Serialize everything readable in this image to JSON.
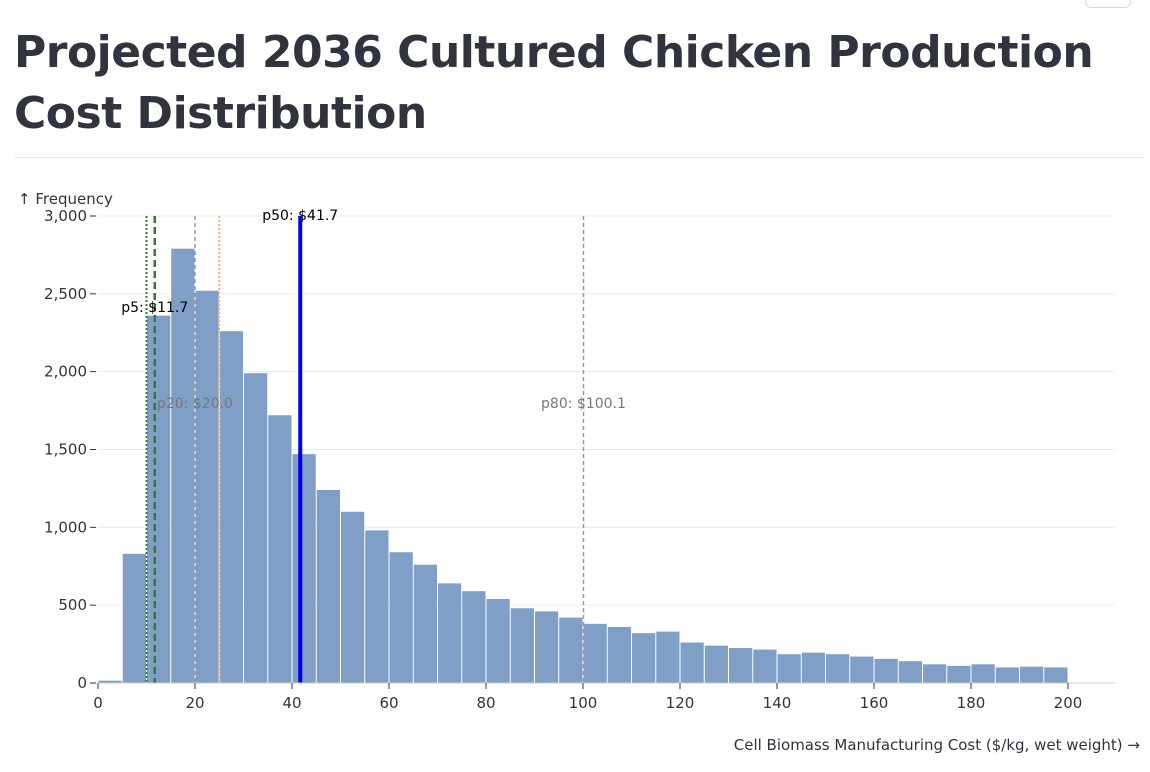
{
  "page": {
    "title": "Projected 2036 Cultured Chicken Production Cost Distribution"
  },
  "chart_data": {
    "type": "bar",
    "title": "Projected 2036 Cultured Chicken Production Cost Distribution",
    "xlabel": "Cell Biomass Manufacturing Cost ($/kg, wet weight) →",
    "ylabel": "↑ Frequency",
    "xlim": [
      0,
      210
    ],
    "ylim": [
      0,
      3000
    ],
    "grid": true,
    "bin_width": 5,
    "bins_start": [
      0,
      5,
      10,
      15,
      20,
      25,
      30,
      35,
      40,
      45,
      50,
      55,
      60,
      65,
      70,
      75,
      80,
      85,
      90,
      95,
      100,
      105,
      110,
      115,
      120,
      125,
      130,
      135,
      140,
      145,
      150,
      155,
      160,
      165,
      170,
      175,
      180,
      185,
      190,
      195
    ],
    "values": [
      15,
      830,
      2360,
      2790,
      2520,
      2260,
      1990,
      1720,
      1470,
      1240,
      1100,
      980,
      840,
      760,
      640,
      590,
      540,
      480,
      460,
      420,
      380,
      360,
      320,
      330,
      260,
      240,
      225,
      215,
      185,
      195,
      185,
      170,
      155,
      140,
      120,
      110,
      120,
      100,
      105,
      100
    ],
    "x_ticks": [
      "0",
      "20",
      "40",
      "60",
      "80",
      "100",
      "120",
      "140",
      "160",
      "180",
      "200"
    ],
    "x_tick_values": [
      0,
      20,
      40,
      60,
      80,
      100,
      120,
      140,
      160,
      180,
      200
    ],
    "y_ticks": [
      "0",
      "500",
      "1,000",
      "1,500",
      "2,000",
      "2,500",
      "3,000"
    ],
    "y_tick_values": [
      0,
      500,
      1000,
      1500,
      2000,
      2500,
      3000
    ],
    "colors": {
      "bar": "#7f9fc6",
      "grid": "#ebebeb",
      "axis": "#31333f"
    },
    "reference_lines": [
      {
        "x": 10,
        "color": "#2e7d32",
        "dash": "dotted",
        "label": ""
      },
      {
        "x": 11.7,
        "color": "#2e7d32",
        "dash": "dashed",
        "label": "p5: $11.7"
      },
      {
        "x": 20.0,
        "color": "#999999",
        "dash": "dashed",
        "label": "p20: $20.0"
      },
      {
        "x": 25,
        "color": "#f5b87a",
        "dash": "dotted",
        "label": ""
      },
      {
        "x": 41.7,
        "color": "#0000ee",
        "dash": "solid",
        "label": "p50: $41.7"
      },
      {
        "x": 100.1,
        "color": "#999999",
        "dash": "dashed",
        "label": "p80: $100.1"
      }
    ]
  }
}
